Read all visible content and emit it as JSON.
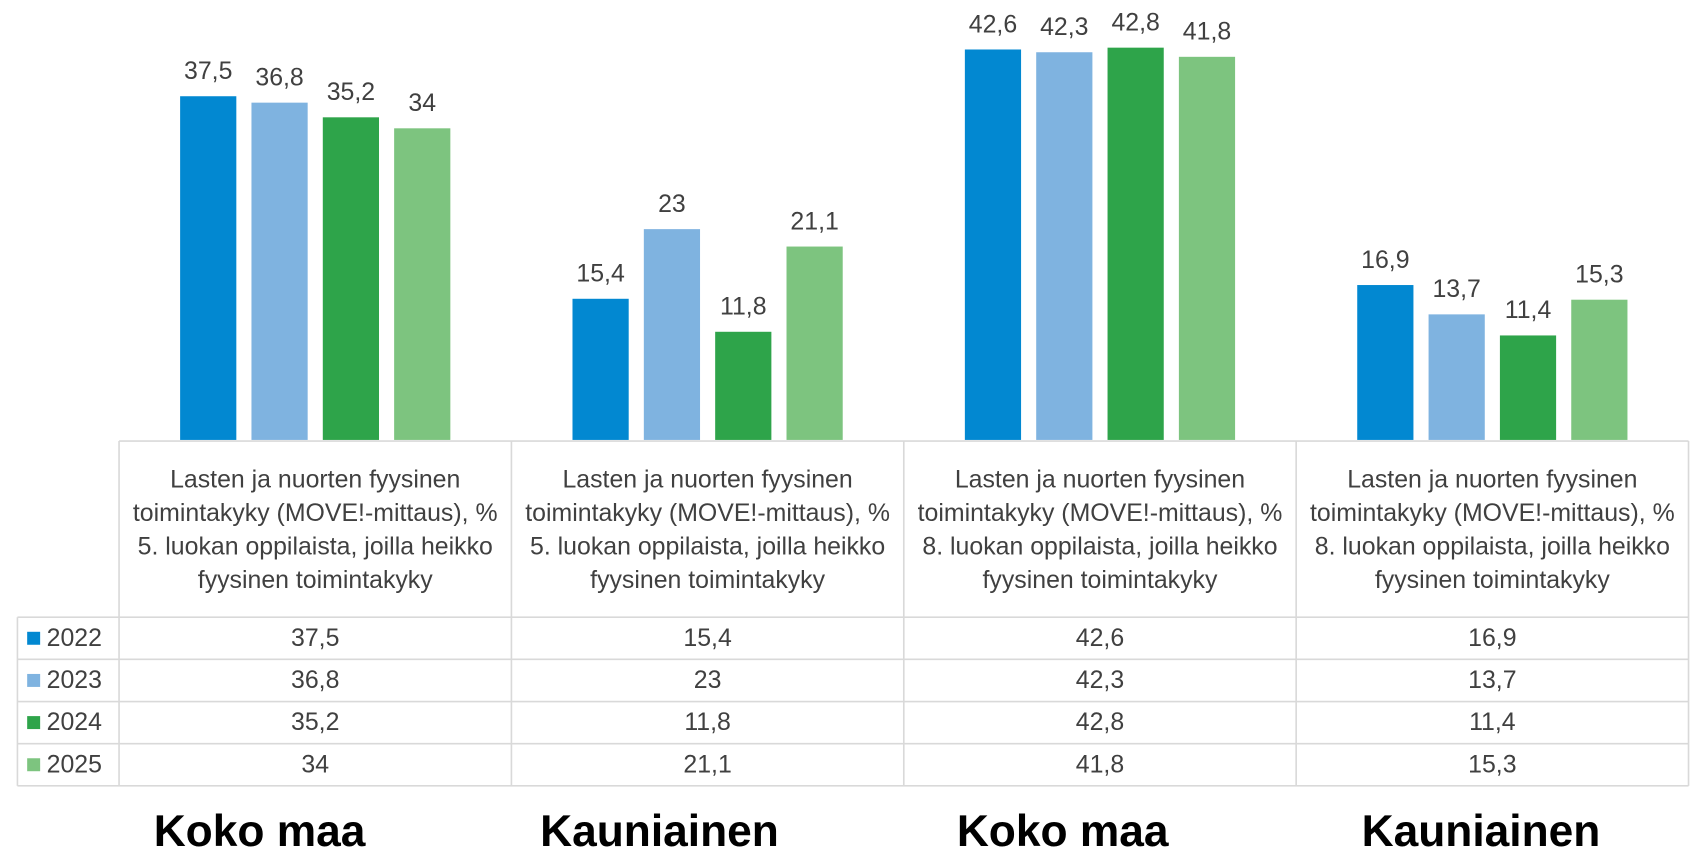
{
  "chart_data": {
    "type": "bar",
    "categories": [
      "Lasten ja nuorten fyysinen toimintakyky (MOVE!-mittaus), % 5. luokan oppilaista, joilla heikko fyysinen toimintakyky",
      "Lasten ja nuorten fyysinen toimintakyky (MOVE!-mittaus), % 5. luokan oppilaista, joilla heikko fyysinen toimintakyky",
      "Lasten ja nuorten fyysinen toimintakyky (MOVE!-mittaus), % 8. luokan oppilaista, joilla heikko fyysinen toimintakyky",
      "Lasten ja nuorten fyysinen toimintakyky (MOVE!-mittaus), % 8. luokan oppilaista, joilla heikko fyysinen toimintakyky"
    ],
    "group_labels": [
      "Koko maa",
      "Kauniainen",
      "Koko maa",
      "Kauniainen"
    ],
    "series": [
      {
        "name": "2022",
        "color": "#0288d1",
        "values": [
          37.5,
          15.4,
          42.6,
          16.9
        ],
        "value_labels": [
          "37,5",
          "15,4",
          "42,6",
          "16,9"
        ]
      },
      {
        "name": "2023",
        "color": "#7fb3e0",
        "values": [
          36.8,
          23,
          42.3,
          13.7
        ],
        "value_labels": [
          "36,8",
          "23",
          "42,3",
          "13,7"
        ]
      },
      {
        "name": "2024",
        "color": "#2ea44a",
        "values": [
          35.2,
          11.8,
          42.8,
          11.4
        ],
        "value_labels": [
          "35,2",
          "11,8",
          "42,8",
          "11,4"
        ]
      },
      {
        "name": "2025",
        "color": "#7dc47f",
        "values": [
          34,
          21.1,
          41.8,
          15.3
        ],
        "value_labels": [
          "34",
          "21,1",
          "41,8",
          "15,3"
        ]
      }
    ],
    "ylim": [
      0,
      48
    ]
  }
}
